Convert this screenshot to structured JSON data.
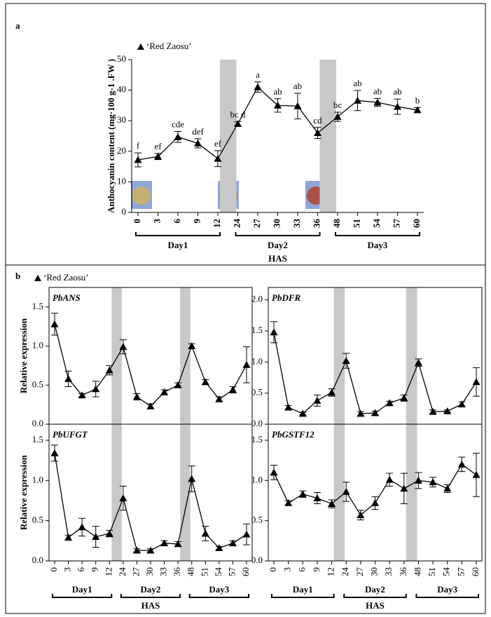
{
  "chart_data": [
    {
      "type": "line",
      "panel": "a",
      "categories": [
        "0",
        "3",
        "6",
        "9",
        "12",
        "24",
        "27",
        "30",
        "33",
        "36",
        "48",
        "51",
        "54",
        "57",
        "60"
      ],
      "series": [
        {
          "name": "‘Red Zaosu’",
          "color": "#000000",
          "values": [
            17.2,
            18.3,
            24.7,
            22.6,
            17.6,
            29,
            41,
            35,
            34.8,
            26,
            31.3,
            36.6,
            36,
            34.6,
            33.5
          ],
          "errors": [
            2.3,
            1,
            1.8,
            1.5,
            2.6,
            0.7,
            1.7,
            2.2,
            4.2,
            1.8,
            1.5,
            3.3,
            1.3,
            2.5,
            0.8
          ],
          "annotations": [
            "f",
            "ef",
            "cde",
            "def",
            "ef",
            "bc d",
            "a",
            "ab",
            "ab",
            "cd",
            "bc",
            "ab",
            "ab",
            "ab",
            "b"
          ]
        }
      ],
      "ylim": [
        0,
        50
      ],
      "yticks": [
        0,
        10,
        20,
        30,
        40,
        50
      ],
      "y_label": "Anthocyanin content (mg·100 g-1 .FW )",
      "x_label": "HAS",
      "groups": [
        "Day1",
        "Day2",
        "Day3"
      ]
    },
    {
      "type": "line",
      "panel": "b",
      "title": "PbANS",
      "series": [
        {
          "name": "‘Red Zaosu’",
          "color": "#000000",
          "values": [
            1.28,
            0.58,
            0.37,
            0.45,
            0.69,
            0.99,
            0.35,
            0.23,
            0.41,
            0.5,
            1.0,
            0.54,
            0.32,
            0.44,
            0.76
          ],
          "errors": [
            0.14,
            0.1,
            0.02,
            0.1,
            0.06,
            0.09,
            0.04,
            0.03,
            0.03,
            0.03,
            0.03,
            0.03,
            0.03,
            0.04,
            0.23
          ]
        }
      ],
      "ylim": [
        0,
        1.75
      ],
      "yticks": [
        {
          "value": 0,
          "label": "0.0"
        },
        0.5,
        {
          "value": 1,
          "label": "1.0"
        },
        1.5
      ],
      "y_label": "Relative expression"
    },
    {
      "type": "line",
      "title": "PbDFR",
      "series": [
        {
          "color": "#000000",
          "values": [
            1.48,
            0.27,
            0.17,
            0.38,
            0.51,
            1.02,
            0.17,
            0.18,
            0.34,
            0.42,
            0.99,
            0.2,
            0.21,
            0.32,
            0.68
          ],
          "errors": [
            0.17,
            0.03,
            0.02,
            0.09,
            0.06,
            0.12,
            0.03,
            0.03,
            0.03,
            0.05,
            0.06,
            0.03,
            0.02,
            0.04,
            0.23
          ]
        }
      ],
      "ylim": [
        0,
        2.2
      ],
      "yticks": [
        {
          "value": 0,
          "label": "0.0"
        },
        0.5,
        {
          "value": 1,
          "label": "1.0"
        },
        1.5,
        {
          "value": 2,
          "label": "2.0"
        }
      ]
    },
    {
      "type": "line",
      "title": "PbUFGT",
      "categories": [
        "0",
        "3",
        "6",
        "9",
        "12",
        "24",
        "27",
        "30",
        "33",
        "36",
        "48",
        "51",
        "54",
        "57",
        "60"
      ],
      "series": [
        {
          "color": "#000000",
          "values": [
            1.34,
            0.29,
            0.42,
            0.3,
            0.34,
            0.78,
            0.13,
            0.13,
            0.22,
            0.21,
            1.02,
            0.34,
            0.16,
            0.22,
            0.33
          ],
          "errors": [
            0.1,
            0.03,
            0.11,
            0.13,
            0.04,
            0.15,
            0.02,
            0.02,
            0.03,
            0.03,
            0.16,
            0.09,
            0.02,
            0.03,
            0.13
          ]
        }
      ],
      "ylim": [
        0,
        1.7
      ],
      "yticks": [
        {
          "value": 0,
          "label": "0.0"
        },
        0.5,
        {
          "value": 1,
          "label": "1.0"
        },
        1.5
      ],
      "y_label": "Relative expression",
      "x_label": "HAS",
      "groups": [
        "Day1",
        "Day2",
        "Day3"
      ]
    },
    {
      "type": "line",
      "title": "PbGSTF12",
      "categories": [
        "0",
        "3",
        "6",
        "9",
        "12",
        "24",
        "27",
        "30",
        "33",
        "36",
        "48",
        "51",
        "54",
        "57",
        "60"
      ],
      "series": [
        {
          "color": "#000000",
          "values": [
            1.1,
            0.72,
            0.83,
            0.78,
            0.71,
            0.86,
            0.57,
            0.72,
            1.01,
            0.9,
            1.0,
            0.98,
            0.9,
            1.2,
            1.07
          ],
          "errors": [
            0.09,
            0.03,
            0.04,
            0.07,
            0.05,
            0.12,
            0.06,
            0.08,
            0.08,
            0.19,
            0.1,
            0.06,
            0.05,
            0.09,
            0.27
          ]
        }
      ],
      "ylim": [
        0,
        1.7
      ],
      "yticks": [
        {
          "value": 0,
          "label": "0.0"
        },
        0.5,
        {
          "value": 1,
          "label": "1.0"
        },
        1.5
      ],
      "x_label": "HAS",
      "groups": [
        "Day1",
        "Day2",
        "Day3"
      ]
    }
  ]
}
